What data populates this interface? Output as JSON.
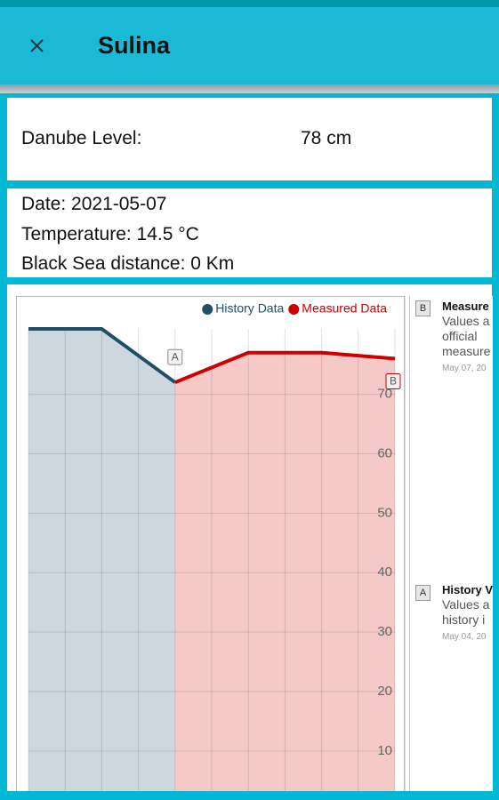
{
  "header": {
    "title": "Sulina"
  },
  "level": {
    "label": "Danube Level:",
    "value": "78 cm"
  },
  "info": [
    "Date: 2021-05-07",
    "Temperature: 14.5 °C",
    "Black Sea distance: 0 Km"
  ],
  "chart_data": {
    "type": "line",
    "categories": [
      null,
      null,
      null,
      null,
      null,
      null
    ],
    "series": [
      {
        "name": "History Data",
        "color": "#1f4e66",
        "fill": "#ccd8de",
        "values": [
          81,
          81,
          72,
          null,
          null,
          null
        ]
      },
      {
        "name": "Measured Data",
        "color": "#cc0000",
        "fill": "#f6c9c9",
        "values": [
          null,
          null,
          72,
          77,
          77,
          76
        ]
      }
    ],
    "ylim": [
      0,
      81
    ],
    "yticks": [
      10,
      20,
      30,
      40,
      50,
      60,
      70
    ],
    "grid": true,
    "legend": "top-right"
  },
  "annotations": [
    {
      "flag": "B",
      "title": "Measure",
      "lines": [
        "Values a",
        "official",
        "measure"
      ],
      "date": "May 07, 20"
    },
    {
      "flag": "A",
      "title": "History V",
      "lines": [
        "Values a",
        "history i"
      ],
      "date": "May 04, 20"
    }
  ]
}
